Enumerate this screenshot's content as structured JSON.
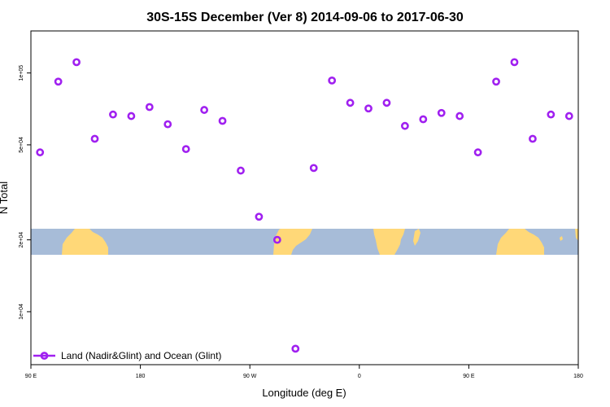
{
  "chart_data": {
    "type": "scatter",
    "title": "30S-15S December (Ver 8)   2014-09-06 to 2017-06-30",
    "xlabel": "Longitude (deg E)",
    "ylabel": "N Total",
    "x_scale": "linear",
    "y_scale": "log",
    "xlim": [
      90,
      540
    ],
    "ylim": [
      6000,
      150000
    ],
    "x_ticks": [
      {
        "value": 90,
        "label": "90 E"
      },
      {
        "value": 180,
        "label": "180"
      },
      {
        "value": 270,
        "label": "90 W"
      },
      {
        "value": 360,
        "label": "0"
      },
      {
        "value": 450,
        "label": "90 E"
      },
      {
        "value": 540,
        "label": "180"
      }
    ],
    "y_ticks": [
      {
        "value": 10000,
        "label": "1e+04"
      },
      {
        "value": 20000,
        "label": "2e+04"
      },
      {
        "value": 50000,
        "label": "5e+04"
      },
      {
        "value": 100000,
        "label": "1e+05"
      }
    ],
    "grid": false,
    "legend_position": "bottom-left",
    "background_map": "world land/ocean strip (30S-15S)",
    "colors": {
      "series": "#a020f0",
      "ocean": "#a7bcd8",
      "land": "#ffd878",
      "axis": "#000000"
    },
    "series": [
      {
        "name": "Land (Nadir&Glint) and Ocean (Glint)",
        "marker": "open-circle",
        "x": [
          97.5,
          112.5,
          127.5,
          142.5,
          157.5,
          172.5,
          187.5,
          202.5,
          217.5,
          232.5,
          247.5,
          262.5,
          277.5,
          292.5,
          307.5,
          322.5,
          337.5,
          352.5,
          367.5,
          382.5,
          397.5,
          412.5,
          427.5,
          442.5,
          457.5,
          472.5,
          487.5,
          502.5,
          517.5,
          532.5
        ],
        "y": [
          46500,
          92000,
          111000,
          53000,
          67000,
          66000,
          72000,
          61000,
          48000,
          70000,
          63000,
          39000,
          25000,
          20000,
          7000,
          40000,
          93000,
          75000,
          71000,
          75000,
          60000,
          64000,
          68000,
          66000,
          46500,
          92000,
          111000,
          53000,
          67000,
          66000
        ]
      }
    ]
  }
}
